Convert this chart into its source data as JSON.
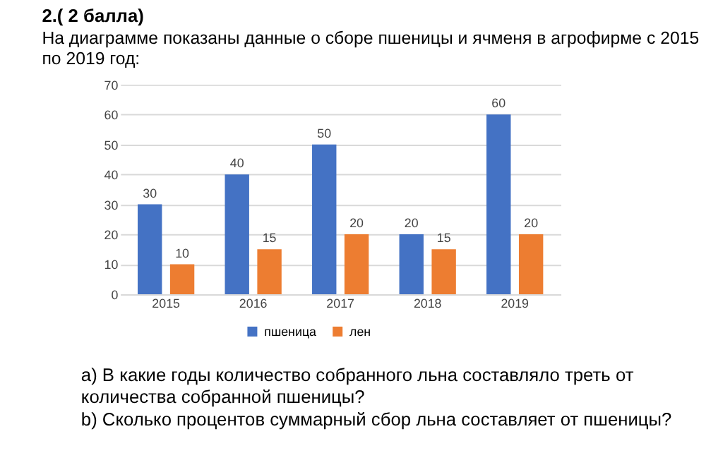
{
  "chart_data": {
    "type": "bar",
    "title": "2.( 2 балла)",
    "subtitle": "На диаграмме показаны данные о сборе пшеницы и ячменя в агрофирме с 2015 по 2019 год:",
    "categories": [
      "2015",
      "2016",
      "2017",
      "2018",
      "2019"
    ],
    "series": [
      {
        "name": "пшеница",
        "color": "#4472c4",
        "values": [
          30,
          40,
          50,
          20,
          60
        ]
      },
      {
        "name": "лен",
        "color": "#ed7d31",
        "values": [
          10,
          15,
          20,
          15,
          20
        ]
      }
    ],
    "ylim": [
      0,
      70
    ],
    "yticks": [
      0,
      10,
      20,
      30,
      40,
      50,
      60,
      70
    ],
    "grid": "y",
    "legend": "bottom",
    "data_labels": true,
    "annotations": [
      "а) В какие годы количество собранного льна составляло треть от количества собранной пшеницы?",
      "b) Сколько процентов суммарный сбор льна составляет от пшеницы?"
    ]
  }
}
